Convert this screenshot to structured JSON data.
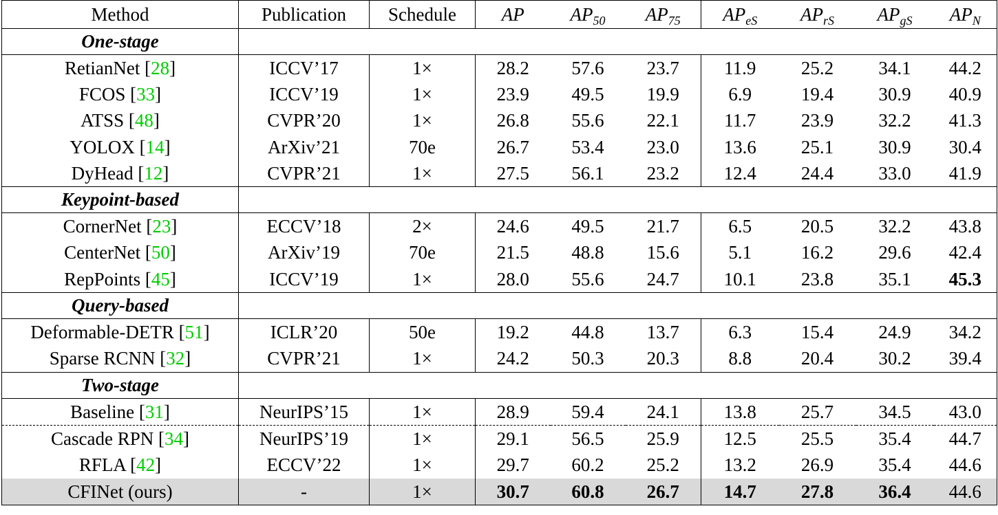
{
  "header": {
    "method": "Method",
    "publication": "Publication",
    "schedule": "Schedule",
    "metrics": [
      {
        "base": "AP",
        "sub": ""
      },
      {
        "base": "AP",
        "sub": "50"
      },
      {
        "base": "AP",
        "sub": "75"
      },
      {
        "base": "AP",
        "sub": "eS"
      },
      {
        "base": "AP",
        "sub": "rS"
      },
      {
        "base": "AP",
        "sub": "gS"
      },
      {
        "base": "AP",
        "sub": "N"
      }
    ]
  },
  "groups": [
    {
      "label": "One-stage",
      "rows": [
        {
          "name": "RetianNet",
          "ref": "28",
          "pub": "ICCV’17",
          "sched": "1×",
          "vals": [
            "28.2",
            "57.6",
            "23.7",
            "11.9",
            "25.2",
            "34.1",
            "44.2"
          ],
          "bold": []
        },
        {
          "name": "FCOS",
          "ref": "33",
          "pub": "ICCV’19",
          "sched": "1×",
          "vals": [
            "23.9",
            "49.5",
            "19.9",
            "6.9",
            "19.4",
            "30.9",
            "40.9"
          ],
          "bold": []
        },
        {
          "name": "ATSS",
          "ref": "48",
          "pub": "CVPR’20",
          "sched": "1×",
          "vals": [
            "26.8",
            "55.6",
            "22.1",
            "11.7",
            "23.9",
            "32.2",
            "41.3"
          ],
          "bold": []
        },
        {
          "name": "YOLOX",
          "ref": "14",
          "pub": "ArXiv’21",
          "sched": "70e",
          "vals": [
            "26.7",
            "53.4",
            "23.0",
            "13.6",
            "25.1",
            "30.9",
            "30.4"
          ],
          "bold": []
        },
        {
          "name": "DyHead",
          "ref": "12",
          "pub": "CVPR’21",
          "sched": "1×",
          "vals": [
            "27.5",
            "56.1",
            "23.2",
            "12.4",
            "24.4",
            "33.0",
            "41.9"
          ],
          "bold": []
        }
      ]
    },
    {
      "label": "Keypoint-based",
      "rows": [
        {
          "name": "CornerNet",
          "ref": "23",
          "pub": "ECCV’18",
          "sched": "2×",
          "vals": [
            "24.6",
            "49.5",
            "21.7",
            "6.5",
            "20.5",
            "32.2",
            "43.8"
          ],
          "bold": []
        },
        {
          "name": "CenterNet",
          "ref": "50",
          "pub": "ArXiv’19",
          "sched": "70e",
          "vals": [
            "21.5",
            "48.8",
            "15.6",
            "5.1",
            "16.2",
            "29.6",
            "42.4"
          ],
          "bold": []
        },
        {
          "name": "RepPoints",
          "ref": "45",
          "pub": "ICCV’19",
          "sched": "1×",
          "vals": [
            "28.0",
            "55.6",
            "24.7",
            "10.1",
            "23.8",
            "35.1",
            "45.3"
          ],
          "bold": [
            6
          ]
        }
      ]
    },
    {
      "label": "Query-based",
      "rows": [
        {
          "name": "Deformable-DETR",
          "ref": "51",
          "pub": "ICLR’20",
          "sched": "50e",
          "vals": [
            "19.2",
            "44.8",
            "13.7",
            "6.3",
            "15.4",
            "24.9",
            "34.2"
          ],
          "bold": []
        },
        {
          "name": "Sparse RCNN",
          "ref": "32",
          "pub": "CVPR’21",
          "sched": "1×",
          "vals": [
            "24.2",
            "50.3",
            "20.3",
            "8.8",
            "20.4",
            "30.2",
            "39.4"
          ],
          "bold": []
        }
      ]
    },
    {
      "label": "Two-stage",
      "rows": [
        {
          "name": "Baseline",
          "ref": "31",
          "pub": "NeurIPS’15",
          "sched": "1×",
          "vals": [
            "28.9",
            "59.4",
            "24.1",
            "13.8",
            "25.7",
            "34.5",
            "43.0"
          ],
          "bold": []
        },
        {
          "name": "Cascade RPN",
          "ref": "34",
          "pub": "NeurIPS’19",
          "sched": "1×",
          "vals": [
            "29.1",
            "56.5",
            "25.9",
            "12.5",
            "25.5",
            "35.4",
            "44.7"
          ],
          "bold": [],
          "dashed_above": true
        },
        {
          "name": "RFLA",
          "ref": "42",
          "pub": "ECCV’22",
          "sched": "1×",
          "vals": [
            "29.7",
            "60.2",
            "25.2",
            "13.2",
            "26.9",
            "35.4",
            "44.6"
          ],
          "bold": []
        },
        {
          "name": "CFINet (ours)",
          "ref": "",
          "pub": "-",
          "sched": "1×",
          "vals": [
            "30.7",
            "60.8",
            "26.7",
            "14.7",
            "27.8",
            "36.4",
            "44.6"
          ],
          "bold": [
            0,
            1,
            2,
            3,
            4,
            5
          ],
          "highlight": true
        }
      ]
    }
  ]
}
